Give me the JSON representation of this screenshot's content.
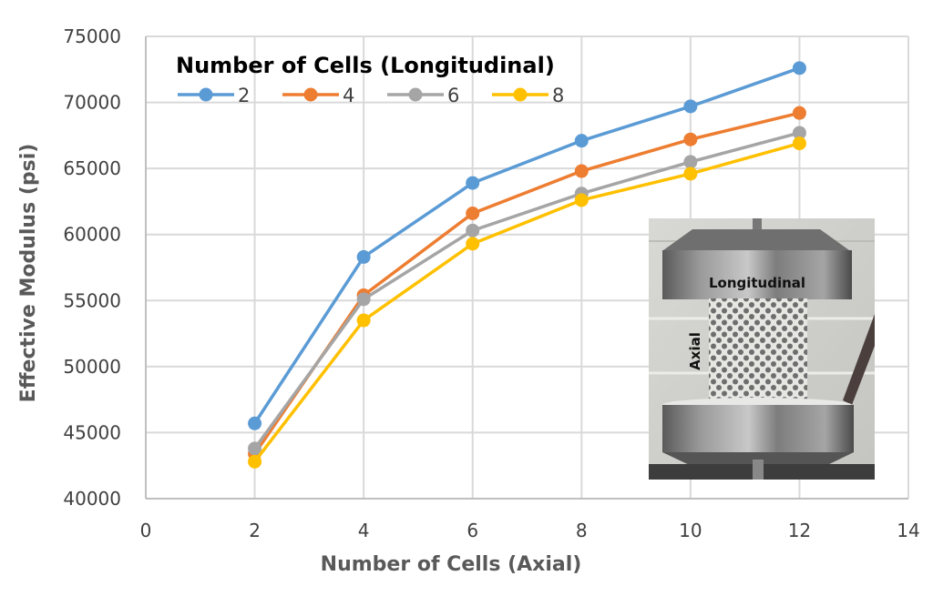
{
  "chart_data": {
    "type": "line",
    "title": "",
    "xlabel": "Number of Cells (Axial)",
    "ylabel": "Effective Modulus (psi)",
    "xlim": [
      0,
      14
    ],
    "ylim": [
      40000,
      75000
    ],
    "xticks": [
      0,
      2,
      4,
      6,
      8,
      10,
      12,
      14
    ],
    "yticks": [
      40000,
      45000,
      50000,
      55000,
      60000,
      65000,
      70000,
      75000
    ],
    "grid": true,
    "legend": {
      "title": "Number of Cells (Longitudinal)",
      "placement": "top-left"
    },
    "x": [
      2,
      4,
      6,
      8,
      10,
      12
    ],
    "series": [
      {
        "name": "2",
        "color": "#5B9BD5",
        "values": [
          45700,
          58300,
          63900,
          67100,
          69700,
          72600
        ]
      },
      {
        "name": "4",
        "color": "#ED7D31",
        "values": [
          43400,
          55400,
          61600,
          64800,
          67200,
          69200
        ]
      },
      {
        "name": "6",
        "color": "#A5A5A5",
        "values": [
          43800,
          55100,
          60300,
          63100,
          65500,
          67700
        ]
      },
      {
        "name": "8",
        "color": "#FFC000",
        "values": [
          42800,
          53500,
          59300,
          62600,
          64600,
          66900
        ]
      }
    ],
    "inset": {
      "description": "photo of lattice specimen in compression test fixture",
      "labels": [
        "Longitudinal",
        "Axial"
      ]
    }
  }
}
